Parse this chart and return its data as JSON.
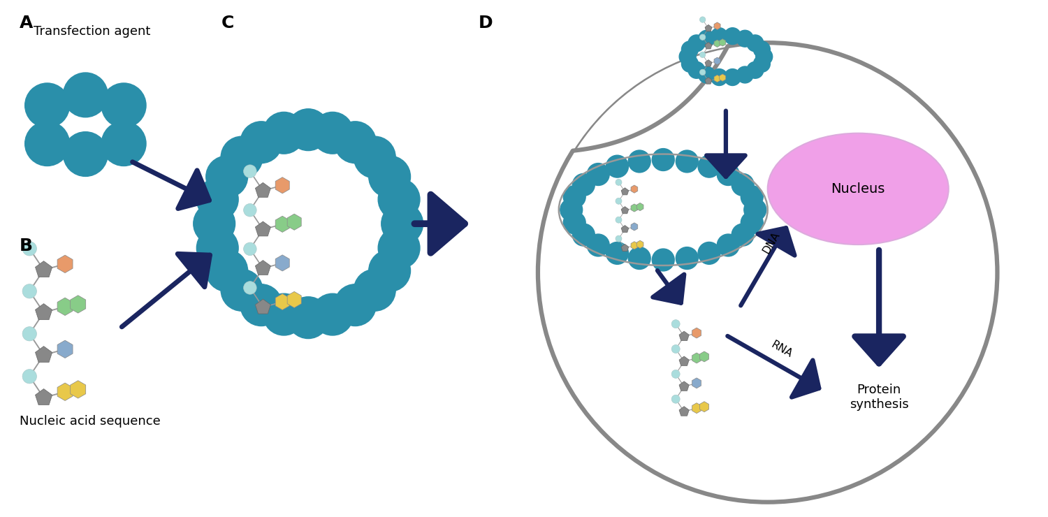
{
  "bg_color": "#ffffff",
  "teal": "#2a8faa",
  "cyan_light": "#aadddd",
  "yellow": "#e8c84a",
  "green": "#88cc88",
  "orange": "#e89a6a",
  "blue_hex": "#88aacc",
  "gray_pent": "#888888",
  "arrow_color": "#1a2560",
  "cell_border": "#888888",
  "nucleus_color": "#f0a0e8",
  "nucleus_edge": "#ddaadd",
  "endo_edge": "#999999",
  "label_A": "A",
  "label_B": "B",
  "label_C": "C",
  "label_D": "D",
  "text_transfection": "Transfection agent",
  "text_nucleic": "Nucleic acid sequence",
  "text_nucleus": "Nucleus",
  "text_dna": "DNA",
  "text_rna": "RNA",
  "text_protein": "Protein\nsynthesis"
}
